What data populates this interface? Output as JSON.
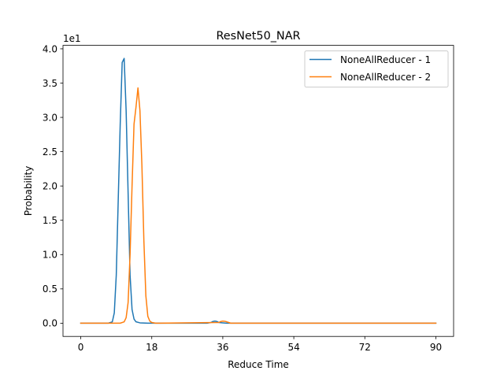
{
  "chart_data": {
    "type": "line",
    "title": "ResNet50_NAR",
    "xlabel": "Reduce Time",
    "ylabel": "Probability",
    "y_offset_text": "1e1",
    "xlim": [
      -4.5,
      94.5
    ],
    "ylim": [
      -0.193,
      4.05
    ],
    "xticks": [
      0,
      18,
      36,
      54,
      72,
      90
    ],
    "yticks": [
      0.0,
      0.5,
      1.0,
      1.5,
      2.0,
      2.5,
      3.0,
      3.5,
      4.0
    ],
    "ytick_labels": [
      "0.0",
      "0.5",
      "1.0",
      "1.5",
      "2.0",
      "2.5",
      "3.0",
      "3.5",
      "4.0"
    ],
    "grid": false,
    "legend_position": "top-right",
    "series": [
      {
        "name": "NoneAllReducer - 1",
        "color": "#1f77b4",
        "x": [
          0,
          7,
          8,
          8.5,
          9,
          9.5,
          10,
          10.5,
          11,
          11.5,
          12,
          12.5,
          13,
          13.5,
          14,
          15,
          17,
          18,
          32,
          33,
          33.5,
          34,
          34.5,
          35,
          36,
          37,
          90
        ],
        "y": [
          0,
          0,
          0.02,
          0.15,
          0.7,
          1.8,
          2.9,
          3.8,
          3.86,
          3.1,
          1.9,
          0.7,
          0.2,
          0.06,
          0.02,
          0.005,
          0,
          0,
          0,
          0.01,
          0.025,
          0.03,
          0.025,
          0.01,
          0.005,
          0,
          0
        ]
      },
      {
        "name": "NoneAllReducer - 2",
        "color": "#ff7f0e",
        "x": [
          0,
          10,
          11,
          11.5,
          12,
          12.5,
          13,
          13.5,
          14,
          14.5,
          15,
          15.5,
          16,
          16.5,
          17,
          17.5,
          18,
          19,
          20,
          35,
          35.5,
          36,
          36.5,
          37,
          37.5,
          38,
          90
        ],
        "y": [
          0,
          0,
          0.02,
          0.08,
          0.3,
          1.0,
          2.0,
          2.9,
          3.15,
          3.43,
          3.1,
          2.3,
          1.2,
          0.4,
          0.1,
          0.03,
          0.01,
          0,
          0,
          0.01,
          0.025,
          0.03,
          0.028,
          0.02,
          0.01,
          0,
          0
        ]
      }
    ]
  }
}
